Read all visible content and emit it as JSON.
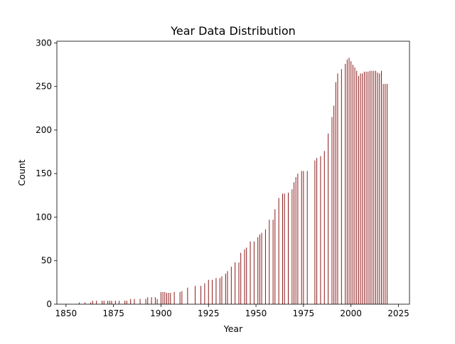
{
  "chart_data": {
    "type": "bar",
    "title": "Year Data Distribution",
    "xlabel": "Year",
    "ylabel": "Count",
    "xlim": [
      1845.2,
      2030.8
    ],
    "ylim": [
      0,
      302
    ],
    "xticks": [
      1850,
      1875,
      1900,
      1925,
      1950,
      1975,
      2000,
      2025
    ],
    "yticks": [
      0,
      50,
      100,
      150,
      200,
      250,
      300
    ],
    "grid": false,
    "legend": "none",
    "bar_color": "#8b1a1a",
    "x": [
      1857,
      1860,
      1863,
      1864,
      1866,
      1869,
      1870,
      1872,
      1873,
      1874,
      1876,
      1878,
      1881,
      1882,
      1884,
      1886,
      1889,
      1892,
      1893,
      1895,
      1897,
      1898,
      1900,
      1901,
      1902,
      1903,
      1904,
      1905,
      1907,
      1910,
      1911,
      1914,
      1918,
      1921,
      1923,
      1925,
      1927,
      1929,
      1931,
      1932,
      1934,
      1935,
      1937,
      1939,
      1941,
      1942,
      1944,
      1945,
      1947,
      1949,
      1951,
      1952,
      1953,
      1955,
      1957,
      1959,
      1960,
      1962,
      1964,
      1965,
      1967,
      1969,
      1970,
      1971,
      1972,
      1974,
      1975,
      1977,
      1981,
      1982,
      1984,
      1986,
      1988,
      1990,
      1991,
      1992,
      1993,
      1995,
      1997,
      1998,
      1999,
      2000,
      2001,
      2002,
      2003,
      2004,
      2005,
      2006,
      2007,
      2008,
      2009,
      2010,
      2011,
      2012,
      2013,
      2014,
      2015,
      2016,
      2017,
      2018,
      2019
    ],
    "values": [
      2,
      2,
      2,
      4,
      4,
      4,
      4,
      4,
      4,
      4,
      4,
      4,
      4,
      4,
      6,
      6,
      6,
      6,
      8,
      8,
      8,
      6,
      14,
      14,
      14,
      13,
      13,
      13,
      14,
      14,
      15,
      19,
      21,
      21,
      24,
      28,
      28,
      30,
      30,
      32,
      35,
      38,
      43,
      48,
      48,
      59,
      63,
      65,
      72,
      72,
      77,
      80,
      82,
      86,
      97,
      97,
      109,
      122,
      127,
      127,
      128,
      132,
      140,
      146,
      150,
      153,
      153,
      153,
      165,
      168,
      170,
      176,
      196,
      215,
      228,
      255,
      265,
      270,
      276,
      281,
      283,
      279,
      275,
      272,
      268,
      262,
      265,
      265,
      267,
      267,
      267,
      268,
      268,
      268,
      268,
      266,
      265,
      268,
      253,
      253,
      253
    ]
  }
}
